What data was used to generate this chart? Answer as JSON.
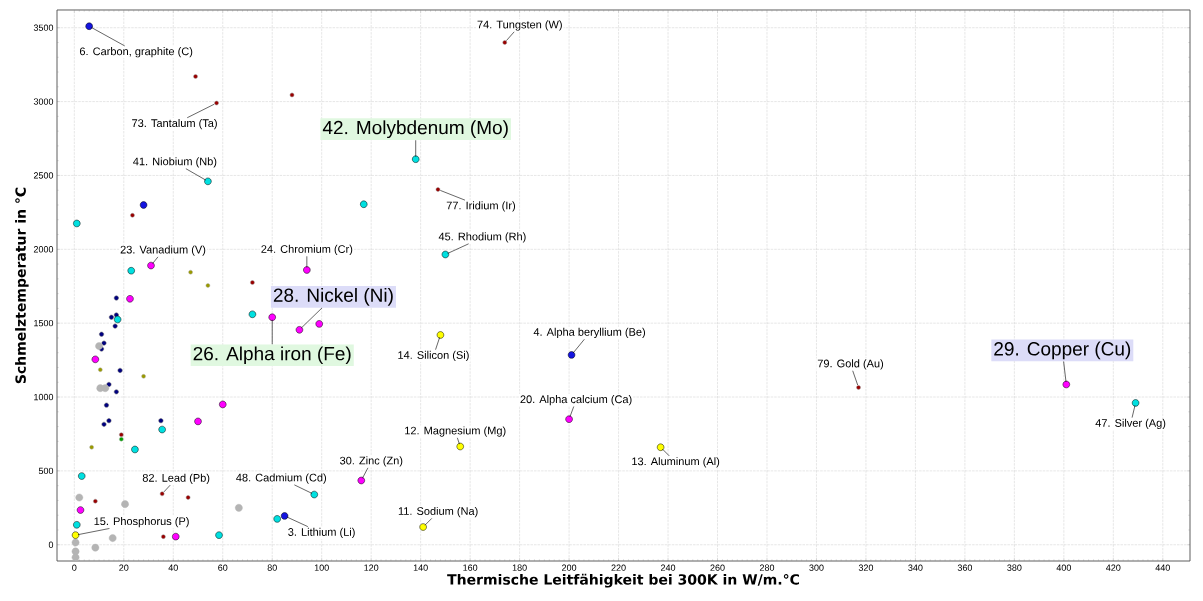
{
  "chart_data": {
    "type": "scatter",
    "xlabel": "Thermische Leitfähigkeit bei 300K in W/m.°C",
    "ylabel": "Schmelztemperatur in °C",
    "xlim": [
      -7,
      451
    ],
    "ylim": [
      -110,
      3620
    ],
    "xticks": [
      0,
      20,
      40,
      60,
      80,
      100,
      120,
      140,
      160,
      180,
      200,
      220,
      240,
      260,
      280,
      300,
      320,
      340,
      360,
      380,
      400,
      420,
      440
    ],
    "yticks": [
      0,
      500,
      1000,
      1500,
      2000,
      2500,
      3000,
      3500
    ],
    "grid": true,
    "series": [
      {
        "color": "#1414e0",
        "x": [
          6,
          28,
          85,
          201
        ],
        "values": [
          3510,
          2300,
          195,
          1285
        ]
      },
      {
        "color": "#000080",
        "x": [
          17,
          15,
          17,
          16.5,
          11,
          12,
          11,
          18.5,
          14,
          17,
          13,
          14,
          12,
          35
        ],
        "values": [
          1670,
          1540,
          1555,
          1480,
          1425,
          1365,
          1325,
          1180,
          1085,
          1035,
          945,
          840,
          815,
          840
        ]
      },
      {
        "color": "#ff00ff",
        "x": [
          31,
          94,
          22.5,
          80,
          91,
          99,
          8.5,
          60,
          50,
          2.5,
          41,
          116,
          200,
          401
        ],
        "values": [
          1890,
          1860,
          1665,
          1540,
          1455,
          1495,
          1255,
          950,
          835,
          235,
          55,
          435,
          850,
          1085
        ]
      },
      {
        "color": "#00e0e0",
        "x": [
          54,
          1,
          23,
          72,
          17.5,
          35.5,
          24.5,
          3,
          1,
          58.5,
          82,
          97,
          138,
          117,
          150,
          429
        ],
        "values": [
          2460,
          2175,
          1855,
          1560,
          1525,
          780,
          645,
          465,
          135,
          65,
          175,
          340,
          2610,
          2305,
          1965,
          960
        ]
      },
      {
        "color": "#990000",
        "x": [
          49,
          88,
          57.5,
          23.5,
          72,
          19,
          35.5,
          46,
          8.5,
          36,
          174,
          147,
          317
        ],
        "values": [
          3170,
          3045,
          2990,
          2230,
          1775,
          745,
          345,
          320,
          295,
          55,
          3400,
          2405,
          1065
        ]
      },
      {
        "color": "#999900",
        "x": [
          47,
          54,
          10.5,
          28,
          7
        ],
        "values": [
          1845,
          1755,
          1185,
          1140,
          660
        ]
      },
      {
        "color": "#b4b4b4",
        "x": [
          10,
          10.5,
          12.5,
          2,
          20.5,
          66.5,
          0.5,
          0.5,
          0.5,
          8.5,
          15.5
        ],
        "values": [
          1345,
          1060,
          1060,
          320,
          275,
          250,
          15,
          -45,
          -85,
          -20,
          45
        ]
      },
      {
        "color": "#ffff00",
        "x": [
          0.5,
          141,
          156,
          148,
          237
        ],
        "values": [
          65,
          120,
          665,
          1420,
          660
        ]
      },
      {
        "color": "#00a000",
        "x": [
          19
        ],
        "values": [
          715
        ]
      }
    ],
    "annotations": [
      {
        "text": "6. Carbon, graphite (C)",
        "x": 6,
        "y": 3510
      },
      {
        "text": "73. Tantalum (Ta)",
        "x": 57.5,
        "y": 2990
      },
      {
        "text": "41. Niobium (Nb)",
        "x": 54,
        "y": 2460
      },
      {
        "text": "42. Molybdenum (Mo)",
        "x": 138,
        "y": 2610
      },
      {
        "text": "74. Tungsten (W)",
        "x": 174,
        "y": 3400
      },
      {
        "text": "77. Iridium (Ir)",
        "x": 147,
        "y": 2405
      },
      {
        "text": "45. Rhodium (Rh)",
        "x": 150,
        "y": 1965
      },
      {
        "text": "23. Vanadium (V)",
        "x": 31,
        "y": 1890
      },
      {
        "text": "24. Chromium (Cr)",
        "x": 94,
        "y": 1860
      },
      {
        "text": "28. Nickel (Ni)",
        "x": 91,
        "y": 1455
      },
      {
        "text": "26. Alpha  iron (Fe)",
        "x": 80,
        "y": 1540
      },
      {
        "text": "14. Silicon (Si)",
        "x": 148,
        "y": 1420
      },
      {
        "text": "4. Alpha beryllium (Be)",
        "x": 201,
        "y": 1285
      },
      {
        "text": "20. Alpha calcium (Ca)",
        "x": 200,
        "y": 850
      },
      {
        "text": "12. Magnesium (Mg)",
        "x": 156,
        "y": 665
      },
      {
        "text": "13. Aluminum (Al)",
        "x": 237,
        "y": 660
      },
      {
        "text": "30. Zinc (Zn)",
        "x": 116,
        "y": 435
      },
      {
        "text": "48. Cadmium (Cd)",
        "x": 97,
        "y": 340
      },
      {
        "text": "11. Sodium (Na)",
        "x": 141,
        "y": 120
      },
      {
        "text": "3. Lithium (Li)",
        "x": 85,
        "y": 195
      },
      {
        "text": "82. Lead (Pb)",
        "x": 35.5,
        "y": 345
      },
      {
        "text": "15. Phosphorus (P)",
        "x": 0.5,
        "y": 65
      },
      {
        "text": "79. Gold (Au)",
        "x": 317,
        "y": 1065
      },
      {
        "text": "29. Copper (Cu)",
        "x": 401,
        "y": 1085
      },
      {
        "text": "47. Silver (Ag)",
        "x": 429,
        "y": 960
      }
    ]
  }
}
